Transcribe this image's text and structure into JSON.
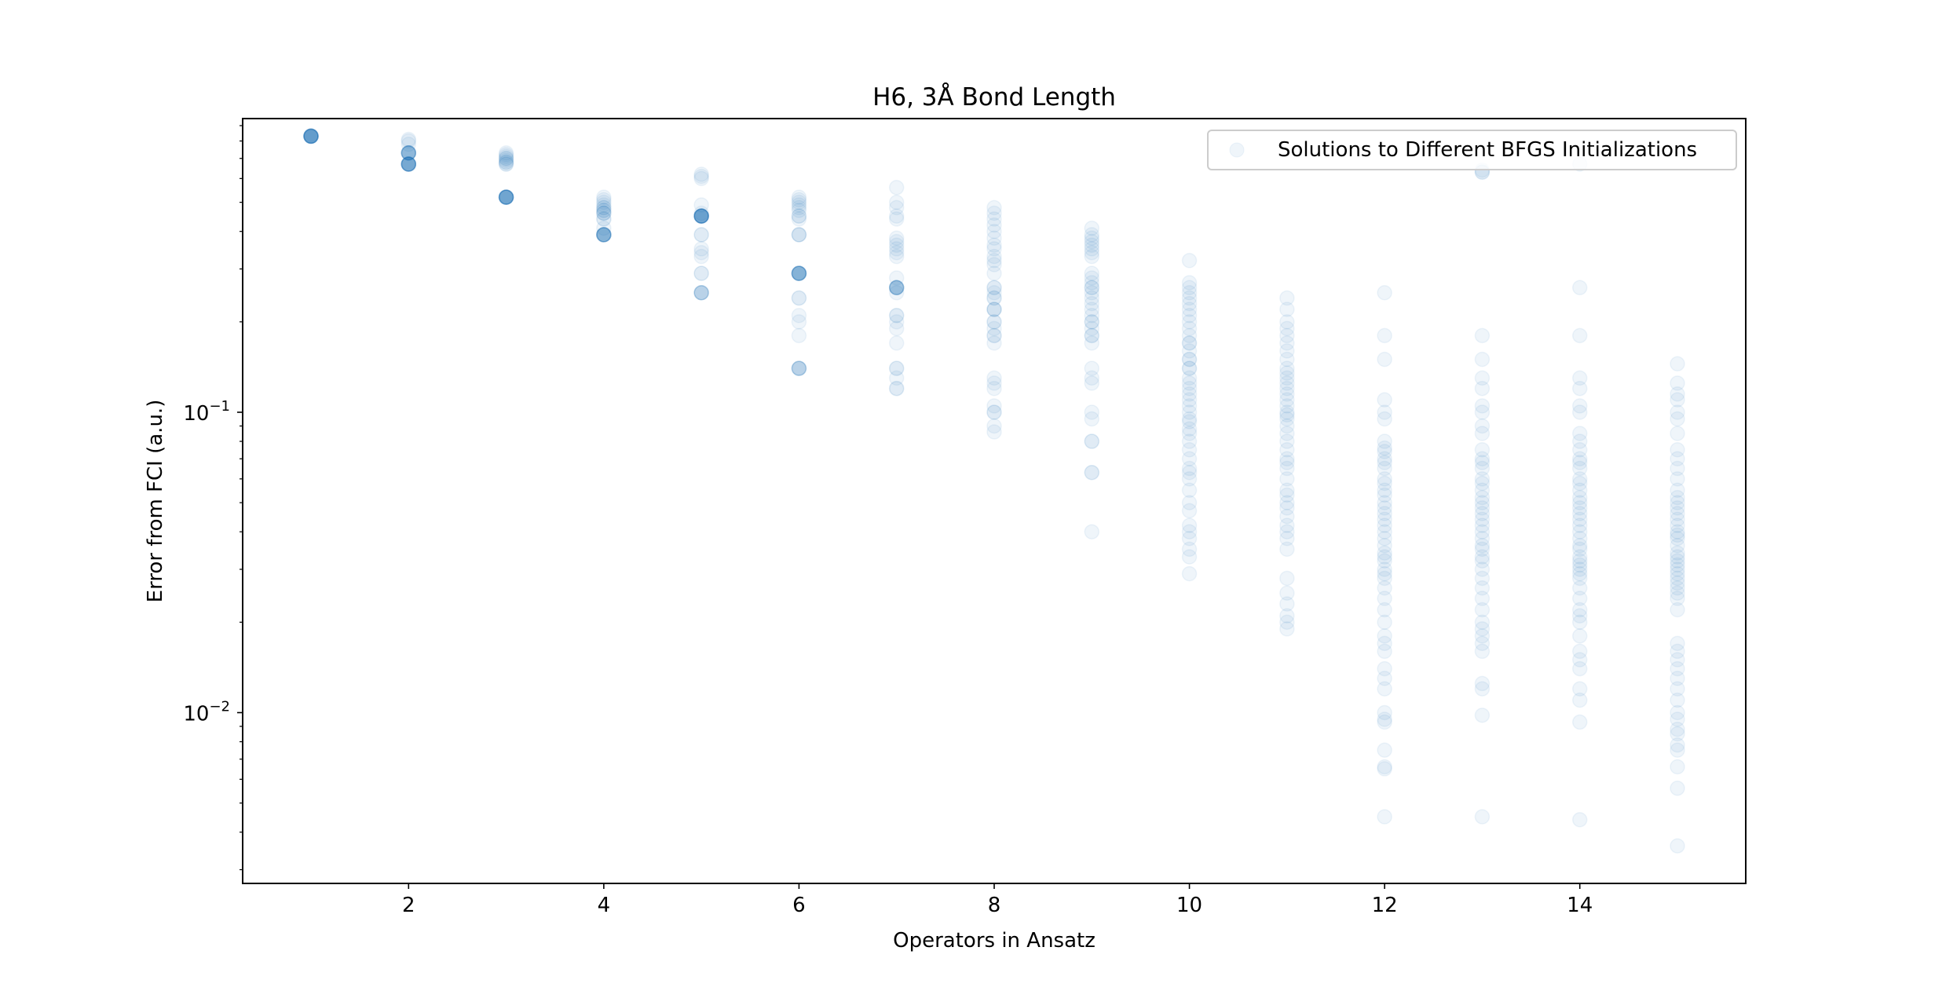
{
  "chart_data": {
    "type": "scatter",
    "title": "H6, 3Å Bond Length",
    "xlabel": "Operators in Ansatz",
    "ylabel": "Error from FCI (a.u.)",
    "xlim": [
      0.3,
      15.7
    ],
    "ylim": [
      0.0027,
      0.95
    ],
    "yscale": "log",
    "x_ticks": [
      2,
      4,
      6,
      8,
      10,
      12,
      14
    ],
    "x_tick_labels": [
      "2",
      "4",
      "6",
      "8",
      "10",
      "12",
      "14"
    ],
    "y_major_ticks": [
      0.01,
      0.1
    ],
    "y_tick_labels": [
      {
        "base": "10",
        "exp": "−2"
      },
      {
        "base": "10",
        "exp": "−1"
      }
    ],
    "legend": {
      "position": "top-right",
      "entries": [
        "Solutions to Different BFGS Initializations"
      ]
    },
    "grid": false,
    "marker_alpha": 0.07,
    "colors": {
      "marker": "#1f77b4",
      "axes": "#000000",
      "background": "#ffffff",
      "legend_border": "#cccccc"
    },
    "series": [
      {
        "name": "Solutions to Different BFGS Initializations",
        "points": [
          {
            "x": 1,
            "y": [
              0.83,
              0.83,
              0.83,
              0.83,
              0.83,
              0.83,
              0.83,
              0.83,
              0.83,
              0.83,
              0.83,
              0.83,
              0.83,
              0.83,
              0.83
            ]
          },
          {
            "x": 2,
            "y": [
              0.81,
              0.8,
              0.78,
              0.73,
              0.73,
              0.73,
              0.73,
              0.73,
              0.73,
              0.73,
              0.73,
              0.73,
              0.67,
              0.67,
              0.67,
              0.67,
              0.67,
              0.67,
              0.67,
              0.67,
              0.67,
              0.67,
              0.67,
              0.67
            ]
          },
          {
            "x": 3,
            "y": [
              0.73,
              0.72,
              0.71,
              0.7,
              0.7,
              0.69,
              0.68,
              0.68,
              0.67,
              0.67,
              0.52,
              0.52,
              0.52,
              0.52,
              0.52,
              0.52,
              0.52,
              0.52,
              0.52,
              0.52,
              0.52,
              0.52,
              0.52
            ]
          },
          {
            "x": 4,
            "y": [
              0.52,
              0.51,
              0.5,
              0.49,
              0.48,
              0.48,
              0.47,
              0.47,
              0.46,
              0.46,
              0.46,
              0.44,
              0.44,
              0.41,
              0.39,
              0.39,
              0.39,
              0.39,
              0.39,
              0.39,
              0.39,
              0.39,
              0.39,
              0.39
            ]
          },
          {
            "x": 5,
            "y": [
              0.62,
              0.61,
              0.6,
              0.49,
              0.46,
              0.45,
              0.45,
              0.45,
              0.45,
              0.45,
              0.45,
              0.45,
              0.45,
              0.45,
              0.45,
              0.45,
              0.45,
              0.45,
              0.39,
              0.39,
              0.35,
              0.34,
              0.33,
              0.29,
              0.29,
              0.25,
              0.25,
              0.25,
              0.25,
              0.25
            ]
          },
          {
            "x": 6,
            "y": [
              0.52,
              0.51,
              0.5,
              0.49,
              0.48,
              0.47,
              0.45,
              0.45,
              0.44,
              0.39,
              0.39,
              0.39,
              0.29,
              0.29,
              0.29,
              0.29,
              0.29,
              0.29,
              0.29,
              0.29,
              0.29,
              0.29,
              0.24,
              0.24,
              0.21,
              0.2,
              0.18,
              0.14,
              0.14,
              0.14,
              0.14,
              0.14
            ]
          },
          {
            "x": 7,
            "y": [
              0.56,
              0.5,
              0.48,
              0.45,
              0.44,
              0.38,
              0.37,
              0.36,
              0.35,
              0.34,
              0.33,
              0.28,
              0.26,
              0.26,
              0.26,
              0.26,
              0.26,
              0.26,
              0.26,
              0.25,
              0.21,
              0.21,
              0.2,
              0.19,
              0.17,
              0.14,
              0.14,
              0.13,
              0.12,
              0.12
            ]
          },
          {
            "x": 8,
            "y": [
              0.48,
              0.46,
              0.44,
              0.42,
              0.4,
              0.38,
              0.36,
              0.35,
              0.33,
              0.32,
              0.31,
              0.29,
              0.26,
              0.26,
              0.25,
              0.24,
              0.24,
              0.22,
              0.22,
              0.22,
              0.2,
              0.2,
              0.19,
              0.18,
              0.18,
              0.17,
              0.13,
              0.125,
              0.12,
              0.105,
              0.1,
              0.1,
              0.09,
              0.086
            ]
          },
          {
            "x": 9,
            "y": [
              0.41,
              0.39,
              0.38,
              0.37,
              0.36,
              0.35,
              0.34,
              0.33,
              0.29,
              0.28,
              0.27,
              0.26,
              0.26,
              0.25,
              0.24,
              0.23,
              0.22,
              0.21,
              0.2,
              0.2,
              0.19,
              0.18,
              0.18,
              0.17,
              0.14,
              0.13,
              0.125,
              0.1,
              0.095,
              0.08,
              0.08,
              0.063,
              0.063,
              0.04
            ]
          },
          {
            "x": 10,
            "y": [
              0.32,
              0.27,
              0.26,
              0.25,
              0.24,
              0.23,
              0.22,
              0.21,
              0.2,
              0.19,
              0.18,
              0.17,
              0.17,
              0.16,
              0.15,
              0.15,
              0.14,
              0.14,
              0.13,
              0.125,
              0.12,
              0.115,
              0.11,
              0.105,
              0.1,
              0.095,
              0.093,
              0.088,
              0.085,
              0.08,
              0.075,
              0.07,
              0.065,
              0.063,
              0.06,
              0.055,
              0.05,
              0.047,
              0.042,
              0.04,
              0.038,
              0.035,
              0.033,
              0.029
            ]
          },
          {
            "x": 11,
            "y": [
              0.24,
              0.22,
              0.2,
              0.19,
              0.18,
              0.17,
              0.16,
              0.15,
              0.14,
              0.135,
              0.13,
              0.125,
              0.12,
              0.115,
              0.11,
              0.105,
              0.1,
              0.098,
              0.095,
              0.09,
              0.085,
              0.08,
              0.075,
              0.07,
              0.068,
              0.065,
              0.06,
              0.055,
              0.053,
              0.05,
              0.048,
              0.045,
              0.042,
              0.04,
              0.038,
              0.035,
              0.028,
              0.025,
              0.023,
              0.021,
              0.02,
              0.019
            ]
          },
          {
            "x": 12,
            "y": [
              0.25,
              0.18,
              0.15,
              0.11,
              0.1,
              0.095,
              0.08,
              0.076,
              0.074,
              0.07,
              0.068,
              0.065,
              0.06,
              0.058,
              0.055,
              0.053,
              0.05,
              0.048,
              0.046,
              0.044,
              0.042,
              0.04,
              0.038,
              0.036,
              0.034,
              0.033,
              0.032,
              0.03,
              0.029,
              0.028,
              0.026,
              0.024,
              0.022,
              0.02,
              0.018,
              0.017,
              0.016,
              0.014,
              0.013,
              0.012,
              0.01,
              0.0095,
              0.0093,
              0.0075,
              0.0066,
              0.0065,
              0.0045
            ]
          },
          {
            "x": 13,
            "y": [
              0.64,
              0.63,
              0.63,
              0.18,
              0.15,
              0.13,
              0.12,
              0.105,
              0.1,
              0.09,
              0.085,
              0.075,
              0.07,
              0.068,
              0.065,
              0.06,
              0.058,
              0.055,
              0.052,
              0.05,
              0.048,
              0.046,
              0.044,
              0.042,
              0.04,
              0.038,
              0.036,
              0.035,
              0.033,
              0.032,
              0.03,
              0.028,
              0.026,
              0.024,
              0.022,
              0.02,
              0.019,
              0.018,
              0.017,
              0.016,
              0.0125,
              0.012,
              0.0098,
              0.0045
            ]
          },
          {
            "x": 14,
            "y": [
              0.67,
              0.26,
              0.18,
              0.13,
              0.12,
              0.105,
              0.1,
              0.085,
              0.08,
              0.075,
              0.07,
              0.068,
              0.065,
              0.06,
              0.058,
              0.055,
              0.052,
              0.05,
              0.048,
              0.046,
              0.044,
              0.042,
              0.04,
              0.038,
              0.036,
              0.035,
              0.033,
              0.032,
              0.031,
              0.03,
              0.029,
              0.028,
              0.026,
              0.024,
              0.022,
              0.021,
              0.02,
              0.018,
              0.016,
              0.015,
              0.014,
              0.012,
              0.011,
              0.0093,
              0.0044
            ]
          },
          {
            "x": 15,
            "y": [
              0.145,
              0.125,
              0.115,
              0.11,
              0.1,
              0.095,
              0.085,
              0.075,
              0.07,
              0.065,
              0.06,
              0.055,
              0.052,
              0.05,
              0.048,
              0.046,
              0.044,
              0.042,
              0.04,
              0.039,
              0.038,
              0.036,
              0.034,
              0.033,
              0.032,
              0.031,
              0.03,
              0.029,
              0.028,
              0.027,
              0.026,
              0.025,
              0.024,
              0.022,
              0.017,
              0.016,
              0.015,
              0.014,
              0.013,
              0.012,
              0.011,
              0.01,
              0.0095,
              0.0088,
              0.0085,
              0.0078,
              0.0075,
              0.0066,
              0.0056,
              0.0036
            ]
          }
        ]
      }
    ]
  }
}
